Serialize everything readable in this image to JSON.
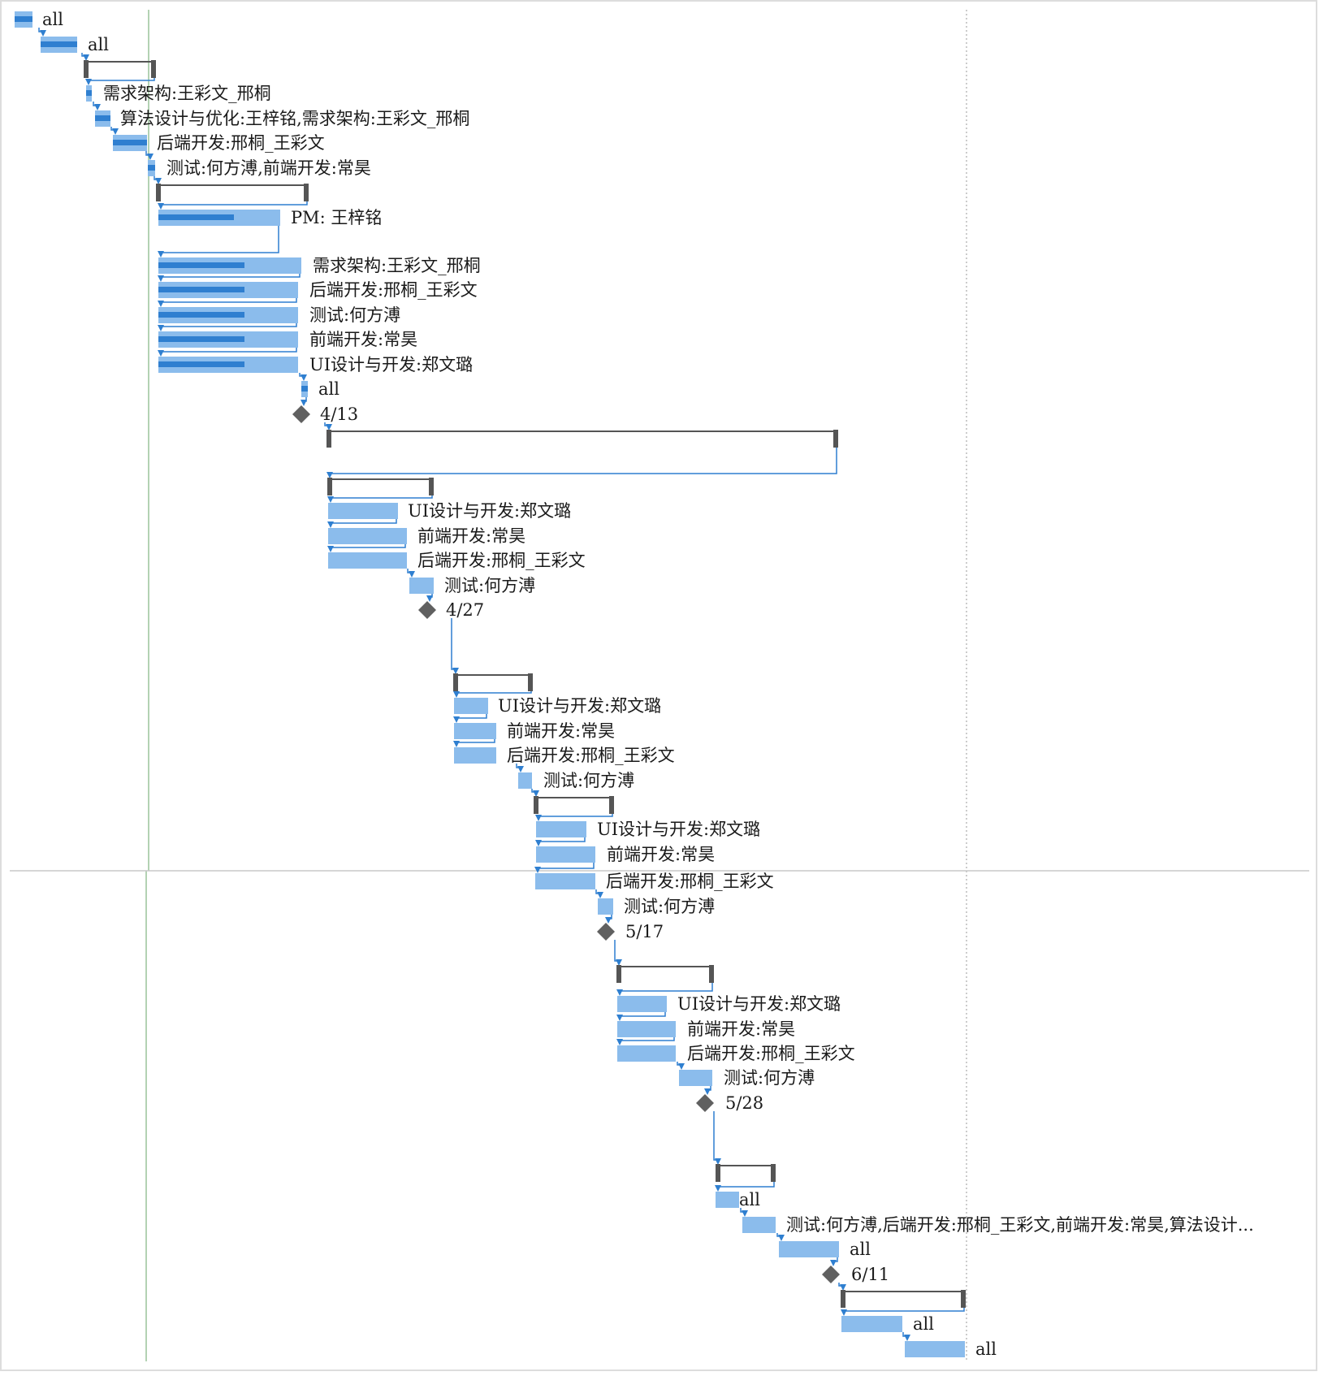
{
  "colors": {
    "bar": "#8bbcec",
    "progress": "#2f7fd0",
    "arrow": "#2f7fd0",
    "bracket": "#555555",
    "milestone": "#606060",
    "border": "#dddddd",
    "today_line": "#9ac49a",
    "splitter": "#c8c8c8",
    "dotted_line": "#bbbbbb"
  },
  "chart_data": {
    "type": "gantt",
    "rows": [
      {
        "kind": "task",
        "label": "all"
      },
      {
        "kind": "task",
        "label": "all"
      },
      {
        "kind": "summary",
        "label": ""
      },
      {
        "kind": "task",
        "label": "需求架构:王彩文_邢桐"
      },
      {
        "kind": "task",
        "label": "算法设计与优化:王梓铭,需求架构:王彩文_邢桐"
      },
      {
        "kind": "task",
        "label": "后端开发:邢桐_王彩文"
      },
      {
        "kind": "task",
        "label": "测试:何方溥,前端开发:常昊"
      },
      {
        "kind": "summary",
        "label": ""
      },
      {
        "kind": "task",
        "label": "PM: 王梓铭"
      },
      {
        "kind": "task",
        "label": "需求架构:王彩文_邢桐"
      },
      {
        "kind": "task",
        "label": "后端开发:邢桐_王彩文"
      },
      {
        "kind": "task",
        "label": "测试:何方溥"
      },
      {
        "kind": "task",
        "label": "前端开发:常昊"
      },
      {
        "kind": "task",
        "label": "UI设计与开发:郑文璐"
      },
      {
        "kind": "task",
        "label": "all"
      },
      {
        "kind": "milestone",
        "label": "4/13"
      },
      {
        "kind": "summary",
        "label": ""
      },
      {
        "kind": "summary",
        "label": ""
      },
      {
        "kind": "task",
        "label": "UI设计与开发:郑文璐"
      },
      {
        "kind": "task",
        "label": "前端开发:常昊"
      },
      {
        "kind": "task",
        "label": "后端开发:邢桐_王彩文"
      },
      {
        "kind": "task",
        "label": "测试:何方溥"
      },
      {
        "kind": "milestone",
        "label": "4/27"
      },
      {
        "kind": "summary",
        "label": ""
      },
      {
        "kind": "task",
        "label": "UI设计与开发:郑文璐"
      },
      {
        "kind": "task",
        "label": "前端开发:常昊"
      },
      {
        "kind": "task",
        "label": "后端开发:邢桐_王彩文"
      },
      {
        "kind": "task",
        "label": "测试:何方溥"
      },
      {
        "kind": "summary",
        "label": ""
      },
      {
        "kind": "task",
        "label": "UI设计与开发:郑文璐"
      },
      {
        "kind": "task",
        "label": "前端开发:常昊"
      },
      {
        "kind": "task",
        "label": "后端开发:邢桐_王彩文"
      },
      {
        "kind": "task",
        "label": "测试:何方溥"
      },
      {
        "kind": "milestone",
        "label": "5/17"
      },
      {
        "kind": "summary",
        "label": ""
      },
      {
        "kind": "task",
        "label": "UI设计与开发:郑文璐"
      },
      {
        "kind": "task",
        "label": "前端开发:常昊"
      },
      {
        "kind": "task",
        "label": "后端开发:邢桐_王彩文"
      },
      {
        "kind": "task",
        "label": "测试:何方溥"
      },
      {
        "kind": "milestone",
        "label": "5/28"
      },
      {
        "kind": "summary",
        "label": ""
      },
      {
        "kind": "task",
        "label": "all"
      },
      {
        "kind": "task",
        "label": "测试:何方溥,后端开发:邢桐_王彩文,前端开发:常昊,算法设计..."
      },
      {
        "kind": "task",
        "label": "all"
      },
      {
        "kind": "milestone",
        "label": "6/11"
      },
      {
        "kind": "summary",
        "label": ""
      },
      {
        "kind": "task",
        "label": "all"
      },
      {
        "kind": "task",
        "label": "all"
      }
    ]
  }
}
